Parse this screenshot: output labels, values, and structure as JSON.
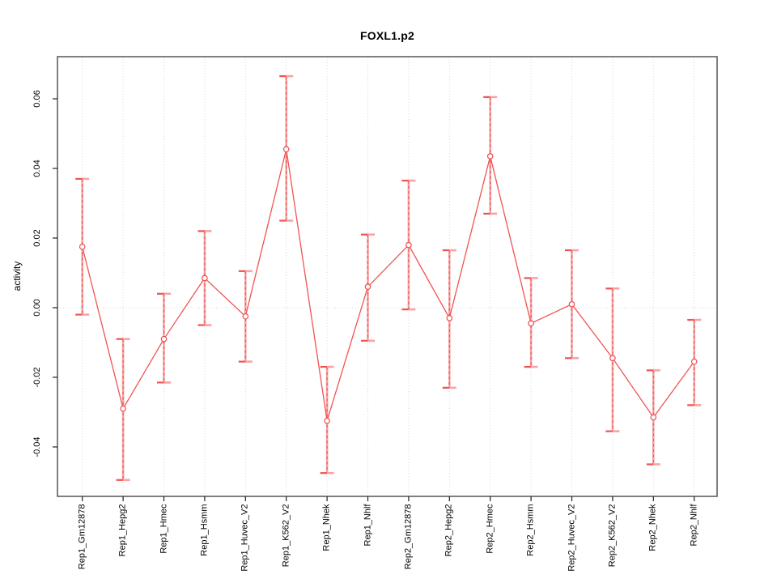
{
  "title": "FOXL1.p2",
  "ylabel": "activity",
  "colors": {
    "line": "#f15353",
    "marker_stroke": "#ee4d4d",
    "marker_fill": "#ffffff",
    "error_bar": "#f6a4a4",
    "error_core": "#ee5454",
    "cap_dark": "#ee5454",
    "cap_light": "#f6a4a4",
    "grid": "#d6d6d6",
    "axis": "#555555",
    "tick": "#222222"
  },
  "chart_data": {
    "type": "line",
    "title": "FOXL1.p2",
    "xlabel": "",
    "ylabel": "activity",
    "ylim": [
      -0.0542,
      0.0721
    ],
    "grid": {
      "vertical_dotted_per_category": true,
      "horizontal_dotted_zero_line": true
    },
    "legend_position": "none",
    "yticks": {
      "values": [
        -0.04,
        -0.02,
        0,
        0.02,
        0.04,
        0.06
      ],
      "labels": [
        "-0.04",
        "-0.02",
        "0.00",
        "0.02",
        "0.04",
        "0.06"
      ]
    },
    "categories": [
      "Rep1_Gm12878",
      "Rep1_Hepg2",
      "Rep1_Hmec",
      "Rep1_Hsmm",
      "Rep1_Huvec_V2",
      "Rep1_K562_V2",
      "Rep1_Nhek",
      "Rep1_Nhlf",
      "Rep2_Gm12878",
      "Rep2_Hepg2",
      "Rep2_Hmec",
      "Rep2_Hsmm",
      "Rep2_Huvec_V2",
      "Rep2_K562_V2",
      "Rep2_Nhek",
      "Rep2_Nhlf"
    ],
    "series": [
      {
        "name": "activity",
        "marker": "open-circle",
        "values": [
          0.0175,
          -0.029,
          -0.009,
          0.0085,
          -0.0025,
          0.0455,
          -0.0325,
          0.006,
          0.018,
          -0.003,
          0.0435,
          -0.0045,
          0.001,
          -0.0145,
          -0.0315,
          -0.0155
        ],
        "err_high": [
          0.037,
          -0.009,
          0.004,
          0.022,
          0.0105,
          0.0665,
          -0.017,
          0.021,
          0.0365,
          0.0165,
          0.0605,
          0.0085,
          0.0165,
          0.0055,
          -0.018,
          -0.0035
        ],
        "err_low": [
          -0.002,
          -0.0495,
          -0.0215,
          -0.005,
          -0.0155,
          0.025,
          -0.0475,
          -0.0095,
          -0.0005,
          -0.023,
          0.027,
          -0.017,
          -0.0145,
          -0.0355,
          -0.045,
          -0.028
        ]
      }
    ]
  }
}
